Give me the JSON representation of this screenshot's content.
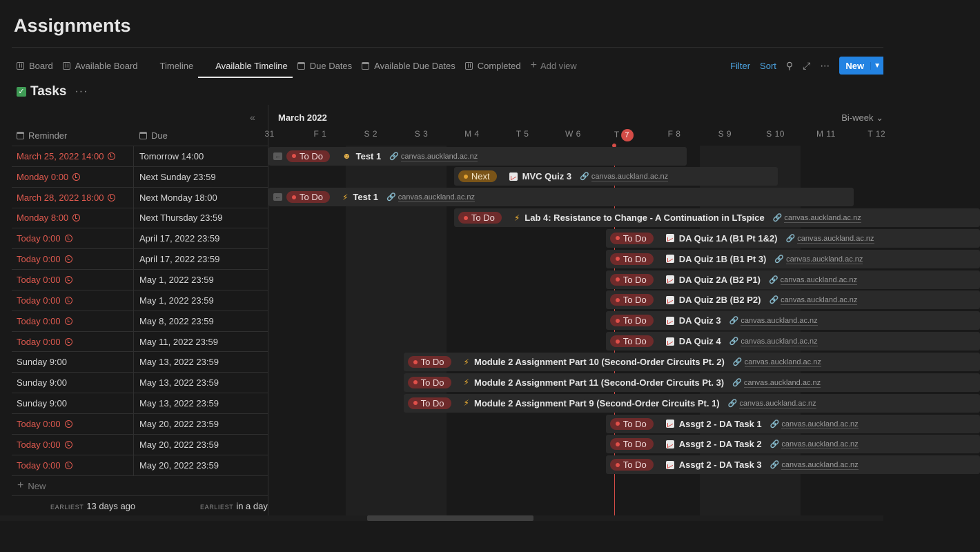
{
  "page": {
    "title": "Assignments"
  },
  "tabs": [
    {
      "label": "Board",
      "icon": "board"
    },
    {
      "label": "Available Board",
      "icon": "board"
    },
    {
      "label": "Timeline",
      "icon": "tl"
    },
    {
      "label": "Available Timeline",
      "icon": "tl",
      "active": true
    },
    {
      "label": "Due Dates",
      "icon": "cal"
    },
    {
      "label": "Available Due Dates",
      "icon": "cal"
    },
    {
      "label": "Completed",
      "icon": "board"
    },
    {
      "label": "Add view",
      "icon": "add"
    }
  ],
  "toolbar": {
    "filter": "Filter",
    "sort": "Sort",
    "new": "New"
  },
  "tasks": {
    "title": "Tasks"
  },
  "columns": {
    "reminder": "Reminder",
    "due": "Due"
  },
  "rows": [
    {
      "reminder": "March 25, 2022 14:00",
      "red": true,
      "due": "Tomorrow 14:00"
    },
    {
      "reminder": "Monday 0:00",
      "red": true,
      "due": "Next Sunday 23:59"
    },
    {
      "reminder": "March 28, 2022 18:00",
      "red": true,
      "due": "Next Monday 18:00"
    },
    {
      "reminder": "Monday 8:00",
      "red": true,
      "due": "Next Thursday 23:59"
    },
    {
      "reminder": "Today 0:00",
      "red": true,
      "due": "April 17, 2022 23:59"
    },
    {
      "reminder": "Today 0:00",
      "red": true,
      "due": "April 17, 2022 23:59"
    },
    {
      "reminder": "Today 0:00",
      "red": true,
      "due": "May 1, 2022 23:59"
    },
    {
      "reminder": "Today 0:00",
      "red": true,
      "due": "May 1, 2022 23:59"
    },
    {
      "reminder": "Today 0:00",
      "red": true,
      "due": "May 8, 2022 23:59"
    },
    {
      "reminder": "Today 0:00",
      "red": true,
      "due": "May 11, 2022 23:59"
    },
    {
      "reminder": "Sunday 9:00",
      "red": false,
      "due": "May 13, 2022 23:59"
    },
    {
      "reminder": "Sunday 9:00",
      "red": false,
      "due": "May 13, 2022 23:59"
    },
    {
      "reminder": "Sunday 9:00",
      "red": false,
      "due": "May 13, 2022 23:59"
    },
    {
      "reminder": "Today 0:00",
      "red": true,
      "due": "May 20, 2022 23:59"
    },
    {
      "reminder": "Today 0:00",
      "red": true,
      "due": "May 20, 2022 23:59"
    },
    {
      "reminder": "Today 0:00",
      "red": true,
      "due": "May 20, 2022 23:59"
    }
  ],
  "left_new": "New",
  "footer": {
    "earliest_label": "EARLIEST",
    "reminder_earliest": "13 days ago",
    "due_earliest": "in a day"
  },
  "timeline": {
    "month": "March 2022",
    "scale": "Bi-week",
    "days": [
      {
        "label": "31",
        "weekend": false
      },
      {
        "label": "F 1",
        "weekend": false
      },
      {
        "label": "S 2",
        "weekend": true
      },
      {
        "label": "S 3",
        "weekend": true
      },
      {
        "label": "M 4",
        "weekend": false
      },
      {
        "label": "T 5",
        "weekend": false
      },
      {
        "label": "W 6",
        "weekend": false
      },
      {
        "label": "T",
        "badge": "7",
        "weekend": false,
        "today": true
      },
      {
        "label": "F 8",
        "weekend": false
      },
      {
        "label": "S 9",
        "weekend": true
      },
      {
        "label": "S 10",
        "weekend": true
      },
      {
        "label": "M 11",
        "weekend": false
      },
      {
        "label": "T 12",
        "weekend": false
      }
    ],
    "link_text": "canvas.auckland.ac.nz",
    "bars": [
      {
        "status": "To Do",
        "kind": "todo",
        "icon": "person",
        "name": "Test 1",
        "start": 0,
        "end": 8.2,
        "back": true
      },
      {
        "status": "Next",
        "kind": "next",
        "icon": "chart",
        "name": "MVC Quiz 3",
        "start": 3.6,
        "end": 10,
        "back": false
      },
      {
        "status": "To Do",
        "kind": "todo",
        "icon": "bolt",
        "name": "Test 1",
        "start": 0,
        "end": 11.5,
        "back": true
      },
      {
        "status": "To Do",
        "kind": "todo",
        "icon": "bolt",
        "name": "Lab 4: Resistance to Change - A Continuation in LTspice",
        "start": 3.6,
        "end": 14,
        "back": false
      },
      {
        "status": "To Do",
        "kind": "todo",
        "icon": "chart",
        "name": "DA Quiz 1A (B1 Pt 1&2)",
        "start": 6.6,
        "end": 14,
        "back": false
      },
      {
        "status": "To Do",
        "kind": "todo",
        "icon": "chart",
        "name": "DA Quiz 1B (B1 Pt 3)",
        "start": 6.6,
        "end": 14,
        "back": false
      },
      {
        "status": "To Do",
        "kind": "todo",
        "icon": "chart",
        "name": "DA Quiz 2A (B2 P1)",
        "start": 6.6,
        "end": 14,
        "back": false
      },
      {
        "status": "To Do",
        "kind": "todo",
        "icon": "chart",
        "name": "DA Quiz 2B (B2 P2)",
        "start": 6.6,
        "end": 14,
        "back": false
      },
      {
        "status": "To Do",
        "kind": "todo",
        "icon": "chart",
        "name": "DA Quiz 3",
        "start": 6.6,
        "end": 14,
        "back": false
      },
      {
        "status": "To Do",
        "kind": "todo",
        "icon": "chart",
        "name": "DA Quiz 4",
        "start": 6.6,
        "end": 14,
        "back": false
      },
      {
        "status": "To Do",
        "kind": "todo",
        "icon": "bolt",
        "name": "Module 2 Assignment Part 10 (Second-Order Circuits Pt. 2)",
        "start": 2.6,
        "end": 14,
        "back": false
      },
      {
        "status": "To Do",
        "kind": "todo",
        "icon": "bolt",
        "name": "Module 2 Assignment Part 11 (Second-Order Circuits Pt. 3)",
        "start": 2.6,
        "end": 14,
        "back": false
      },
      {
        "status": "To Do",
        "kind": "todo",
        "icon": "bolt",
        "name": "Module 2 Assignment Part 9 (Second-Order Circuits Pt. 1)",
        "start": 2.6,
        "end": 14,
        "back": false
      },
      {
        "status": "To Do",
        "kind": "todo",
        "icon": "chart",
        "name": "Assgt 2 - DA Task 1",
        "start": 6.6,
        "end": 14,
        "back": false
      },
      {
        "status": "To Do",
        "kind": "todo",
        "icon": "chart",
        "name": "Assgt 2 - DA Task 2",
        "start": 6.6,
        "end": 14,
        "back": false
      },
      {
        "status": "To Do",
        "kind": "todo",
        "icon": "chart",
        "name": "Assgt 2 - DA Task 3",
        "start": 6.6,
        "end": 14,
        "back": false
      }
    ]
  }
}
